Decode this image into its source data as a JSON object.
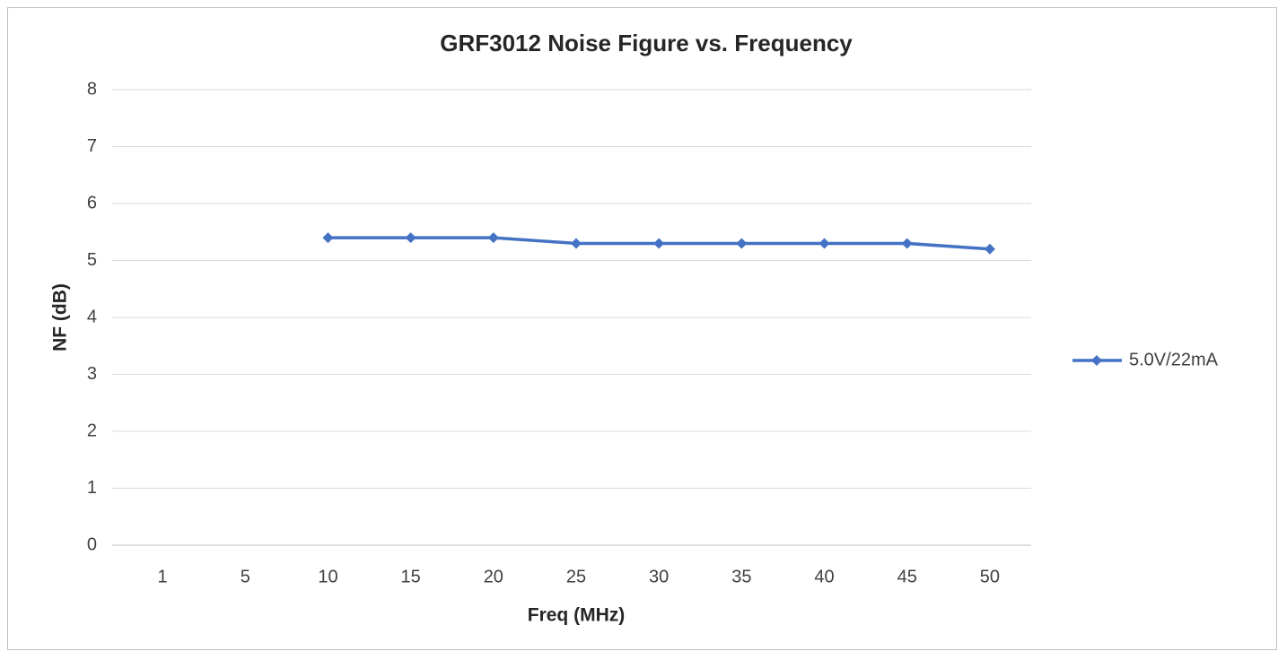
{
  "chart_data": {
    "type": "line",
    "title": "GRF3012 Noise Figure vs. Frequency",
    "x_label": "Freq (MHz)",
    "y_label": "NF (dB)",
    "categories": [
      "1",
      "5",
      "10",
      "15",
      "20",
      "25",
      "30",
      "35",
      "40",
      "45",
      "50"
    ],
    "series": [
      {
        "name": "5.0V/22mA",
        "color": "#4472c4",
        "values": [
          null,
          null,
          5.4,
          5.4,
          5.4,
          5.3,
          5.3,
          5.3,
          5.3,
          5.3,
          5.2
        ]
      }
    ],
    "ylim": [
      0,
      8
    ],
    "yticks": [
      0,
      1,
      2,
      3,
      4,
      5,
      6,
      7,
      8
    ],
    "grid": true,
    "legend": "right"
  }
}
